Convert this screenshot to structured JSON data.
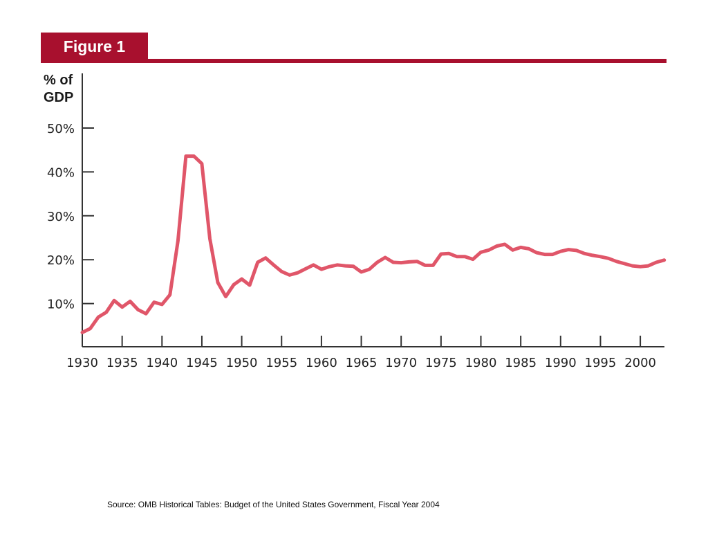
{
  "header": {
    "figure_label": "Figure 1"
  },
  "source": "Source: OMB Historical Tables: Budget of the United States Government, Fiscal Year 2004",
  "chart_data": {
    "type": "line",
    "title": "",
    "xlabel": "",
    "ylabel": "% of\nGDP",
    "xlim": [
      1930,
      2003
    ],
    "ylim": [
      0,
      50
    ],
    "x_ticks": [
      1930,
      1935,
      1940,
      1945,
      1950,
      1955,
      1960,
      1965,
      1970,
      1975,
      1980,
      1985,
      1990,
      1995,
      2000
    ],
    "x_tick_labels": [
      "1930",
      "1935",
      "1940",
      "1945",
      "1950",
      "1955",
      "1960",
      "1965",
      "1970",
      "1975",
      "1980",
      "1985",
      "1990",
      "1995",
      "2000"
    ],
    "y_ticks": [
      10,
      20,
      30,
      40,
      50
    ],
    "y_tick_labels": [
      "10%",
      "20%",
      "30%",
      "40%",
      "50%"
    ],
    "grid": false,
    "line_color": "#e05669",
    "series": [
      {
        "x": [
          1930,
          1931,
          1932,
          1933,
          1934,
          1935,
          1936,
          1937,
          1938,
          1939,
          1940,
          1941,
          1942,
          1943,
          1944,
          1945,
          1946,
          1947,
          1948,
          1949,
          1950,
          1951,
          1952,
          1953,
          1954,
          1955,
          1956,
          1957,
          1958,
          1959,
          1960,
          1961,
          1962,
          1963,
          1964,
          1965,
          1966,
          1967,
          1968,
          1969,
          1970,
          1971,
          1972,
          1973,
          1974,
          1975,
          1976,
          1977,
          1978,
          1979,
          1980,
          1981,
          1982,
          1983,
          1984,
          1985,
          1986,
          1987,
          1988,
          1989,
          1990,
          1991,
          1992,
          1993,
          1994,
          1995,
          1996,
          1997,
          1998,
          1999,
          2000,
          2001,
          2002,
          2003
        ],
        "y": [
          3.4,
          4.3,
          6.9,
          8.0,
          10.7,
          9.2,
          10.5,
          8.6,
          7.7,
          10.3,
          9.8,
          12.0,
          24.3,
          43.6,
          43.6,
          41.9,
          24.8,
          14.8,
          11.6,
          14.3,
          15.6,
          14.2,
          19.4,
          20.4,
          18.8,
          17.3,
          16.5,
          17.0,
          17.9,
          18.8,
          17.8,
          18.4,
          18.8,
          18.6,
          18.5,
          17.2,
          17.8,
          19.4,
          20.5,
          19.4,
          19.3,
          19.5,
          19.6,
          18.7,
          18.7,
          21.3,
          21.4,
          20.7,
          20.7,
          20.1,
          21.7,
          22.2,
          23.1,
          23.5,
          22.2,
          22.8,
          22.5,
          21.6,
          21.2,
          21.2,
          21.9,
          22.3,
          22.1,
          21.4,
          21.0,
          20.7,
          20.3,
          19.6,
          19.1,
          18.6,
          18.4,
          18.6,
          19.4,
          19.9
        ]
      }
    ]
  }
}
